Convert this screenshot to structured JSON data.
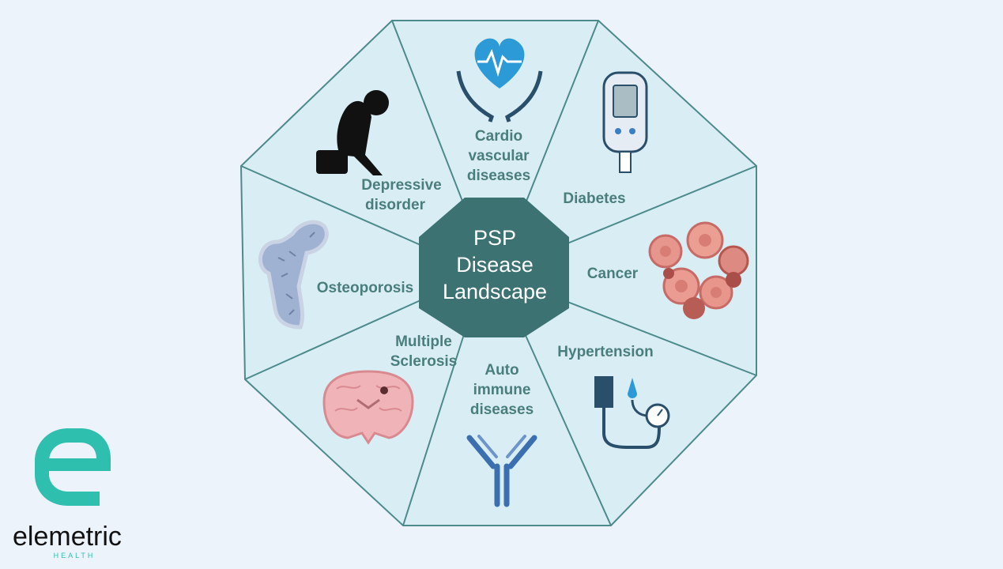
{
  "center": {
    "lines": [
      "PSP",
      "Disease",
      "Landscape"
    ]
  },
  "segments": [
    {
      "id": "cardio",
      "lines": [
        "Cardio",
        "vascular",
        "diseases"
      ],
      "icon": "heart-hands-icon"
    },
    {
      "id": "diabetes",
      "lines": [
        "Diabetes"
      ],
      "icon": "glucose-meter-icon"
    },
    {
      "id": "cancer",
      "lines": [
        "Cancer"
      ],
      "icon": "cancer-cells-icon"
    },
    {
      "id": "hypertension",
      "lines": [
        "Hypertension"
      ],
      "icon": "blood-pressure-monitor-icon"
    },
    {
      "id": "autoimmune",
      "lines": [
        "Auto",
        "immune",
        "diseases"
      ],
      "icon": "antibody-icon"
    },
    {
      "id": "ms",
      "lines": [
        "Multiple",
        "Sclerosis"
      ],
      "icon": "brain-section-icon"
    },
    {
      "id": "osteoporosis",
      "lines": [
        "Osteoporosis"
      ],
      "icon": "bone-icon"
    },
    {
      "id": "depressive",
      "lines": [
        "Depressive",
        "disorder"
      ],
      "icon": "sad-person-icon"
    }
  ],
  "logo": {
    "name": "elemetric",
    "sub": "HEALTH",
    "icon": "elemetric-logo-icon"
  },
  "colors": {
    "background": "#edf3fb",
    "segment_fill": "#d9eef4",
    "segment_stroke": "#4c8a8c",
    "center_fill": "#3d7272",
    "label_text": "#4a7e7c",
    "logo_teal": "#2ebfae"
  }
}
